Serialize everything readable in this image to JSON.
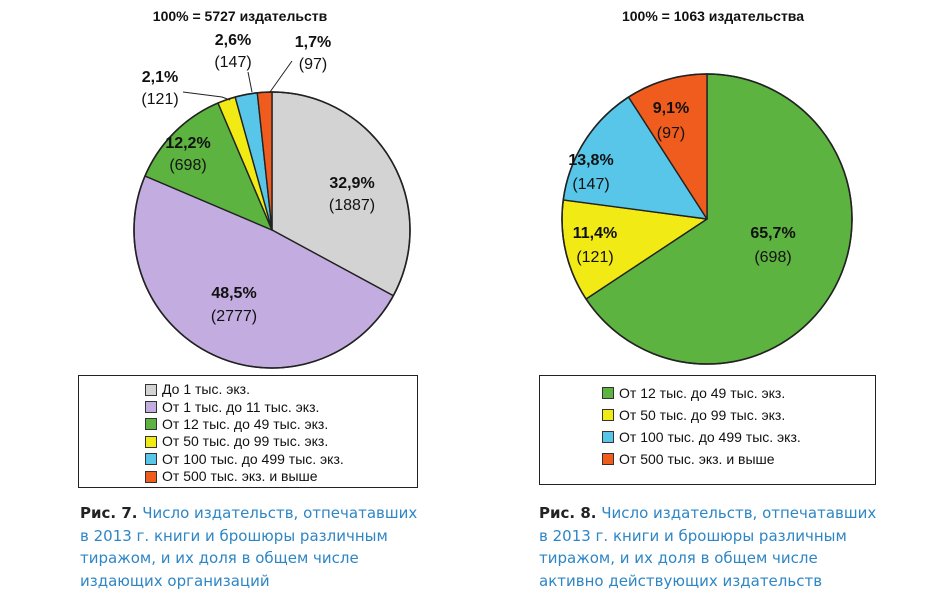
{
  "chart_data": [
    {
      "type": "pie",
      "total_label": "100% = 5727 издательств",
      "slices": [
        {
          "name": "До 1 тыс. экз.",
          "percent": 32.9,
          "percent_label": "32,9%",
          "count": 1887,
          "count_label": "(1887)",
          "color": "#d3d3d3"
        },
        {
          "name": "От 1 тыс. до 11 тыс. экз.",
          "percent": 48.5,
          "percent_label": "48,5%",
          "count": 2777,
          "count_label": "(2777)",
          "color": "#c3ace0"
        },
        {
          "name": "От 12 тыс. до 49 тыс. экз.",
          "percent": 12.2,
          "percent_label": "12,2%",
          "count": 698,
          "count_label": "(698)",
          "color": "#5cb340"
        },
        {
          "name": "От 50 тыс. до 99 тыс. экз.",
          "percent": 2.1,
          "percent_label": "2,1%",
          "count": 121,
          "count_label": "(121)",
          "color": "#f2ea14"
        },
        {
          "name": "От 100 тыс. до 499 тыс. экз.",
          "percent": 2.6,
          "percent_label": "2,6%",
          "count": 147,
          "count_label": "(147)",
          "color": "#58c6e8"
        },
        {
          "name": "От 500 тыс. экз. и выше",
          "percent": 1.7,
          "percent_label": "1,7%",
          "count": 97,
          "count_label": "(97)",
          "color": "#f05c1e"
        }
      ],
      "legend": [
        "До 1 тыс. экз.",
        "От 1 тыс. до 11 тыс. экз.",
        "От 12 тыс. до 49 тыс. экз.",
        "От 50 тыс. до 99 тыс. экз.",
        "От 100 тыс. до 499 тыс. экз.",
        "От 500 тыс. экз. и выше"
      ],
      "legend_placement": "bottom",
      "caption_label": "Рис. 7.",
      "caption_lines": [
        "Число издательств, отпечатавших",
        "в 2013 г. книги и брошюры различным",
        "тиражом, и их доля в общем числе",
        "издающих организаций"
      ]
    },
    {
      "type": "pie",
      "total_label": "100% = 1063 издательства",
      "slices": [
        {
          "name": "От 12 тыс. до 49 тыс. экз.",
          "percent": 65.7,
          "percent_label": "65,7%",
          "count": 698,
          "count_label": "(698)",
          "color": "#5cb340"
        },
        {
          "name": "От 50 тыс. до 99 тыс. экз.",
          "percent": 11.4,
          "percent_label": "11,4%",
          "count": 121,
          "count_label": "(121)",
          "color": "#f2ea14"
        },
        {
          "name": "От 100 тыс. до 499 тыс. экз.",
          "percent": 13.8,
          "percent_label": "13,8%",
          "count": 147,
          "count_label": "(147)",
          "color": "#58c6e8"
        },
        {
          "name": "От 500 тыс. экз. и выше",
          "percent": 9.1,
          "percent_label": "9,1%",
          "count": 97,
          "count_label": "(97)",
          "color": "#f05c1e"
        }
      ],
      "legend": [
        "От 12 тыс. до 49 тыс. экз.",
        "От 50 тыс. до 99 тыс. экз.",
        "От 100 тыс. до 499 тыс. экз.",
        "От 500 тыс. экз. и выше"
      ],
      "legend_placement": "bottom",
      "caption_label": "Рис. 8.",
      "caption_lines": [
        "Число издательств, отпечатавших",
        "в 2013 г. книги и брошюры различным",
        "тиражом, и их доля в общем числе",
        "активно действующих издательств"
      ]
    }
  ]
}
